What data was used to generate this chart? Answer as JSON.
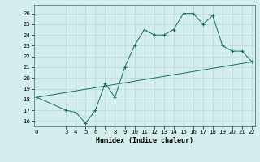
{
  "xlabel": "Humidex (Indice chaleur)",
  "bg_color": "#d4eeee",
  "grid_color": "#b8d8d8",
  "line_color": "#1a6b5a",
  "curve_x": [
    0,
    3,
    4,
    5,
    6,
    7,
    8,
    9,
    10,
    11,
    12,
    13,
    14,
    15,
    16,
    17,
    18,
    19,
    20,
    21,
    22
  ],
  "curve_y": [
    18.2,
    17.0,
    16.8,
    15.8,
    17.0,
    19.5,
    18.2,
    21.0,
    23.0,
    24.5,
    24.0,
    24.0,
    24.5,
    26.0,
    26.0,
    25.0,
    25.8,
    23.0,
    22.5,
    22.5,
    21.5
  ],
  "trend_x": [
    0,
    22
  ],
  "trend_y": [
    18.2,
    21.5
  ],
  "ylim": [
    15.5,
    26.8
  ],
  "xlim": [
    -0.3,
    22.3
  ],
  "yticks": [
    16,
    17,
    18,
    19,
    20,
    21,
    22,
    23,
    24,
    25,
    26
  ],
  "xticks": [
    0,
    3,
    4,
    5,
    6,
    7,
    8,
    9,
    10,
    11,
    12,
    13,
    14,
    15,
    16,
    17,
    18,
    19,
    20,
    21,
    22
  ]
}
